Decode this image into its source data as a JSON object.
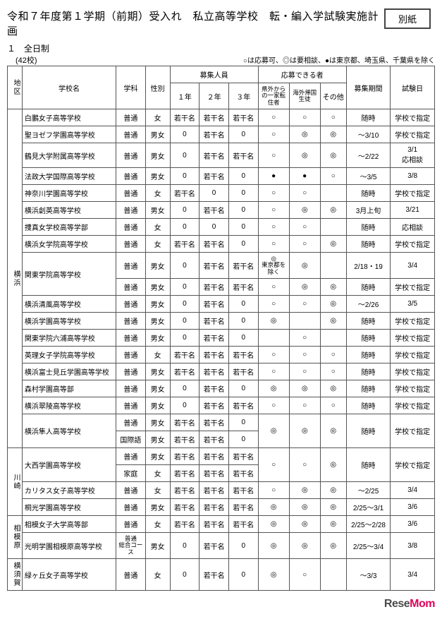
{
  "header": {
    "title": "令和７年度第１学期（前期）受入れ　私立高等学校　転・編入学試験実施計画",
    "attachment": "別紙",
    "sub1": "１　全日制",
    "sub2_left": "(42校)",
    "sub2_right": "○は応募可、◎は要相談、●は東京都、埼玉県、千葉県を除く"
  },
  "th": {
    "region": "地区",
    "school": "学校名",
    "dept": "学科",
    "sex": "性別",
    "recruit": "募集人員",
    "apply": "応募できる者",
    "y1": "１年",
    "y2": "２年",
    "y3": "３年",
    "a1": "県外からの一家転住者",
    "a2": "海外帰国生徒",
    "a3": "その他",
    "period": "募集期間",
    "exam": "試験日"
  },
  "regions": [
    {
      "name": "横浜",
      "rows": 19
    },
    {
      "name": "川崎",
      "rows": 4
    },
    {
      "name": "相模原",
      "rows": 2
    },
    {
      "name": "横須賀",
      "rows": 1
    }
  ],
  "rows": [
    {
      "school": "白鵬女子高等学校",
      "dept": "普通",
      "sex": "女",
      "y1": "若干名",
      "y2": "若干名",
      "y3": "若干名",
      "a1": "○",
      "a2": "○",
      "a3": "○",
      "period": "随時",
      "exam": "学校で指定"
    },
    {
      "school": "聖ヨゼフ学園高等学校",
      "dept": "普通",
      "sex": "男女",
      "y1": "0",
      "y2": "若干名",
      "y3": "0",
      "a1": "○",
      "a2": "◎",
      "a3": "◎",
      "period": "～3/10",
      "exam": "学校で指定"
    },
    {
      "school": "鶴見大学附属高等学校",
      "dept": "普通",
      "sex": "男女",
      "y1": "0",
      "y2": "若干名",
      "y3": "若干名",
      "a1": "○",
      "a2": "◎",
      "a3": "◎",
      "period": "～2/22",
      "exam": "3/1\n応相談"
    },
    {
      "school": "法政大学国際高等学校",
      "dept": "普通",
      "sex": "男女",
      "y1": "0",
      "y2": "若干名",
      "y3": "0",
      "a1": "●",
      "a2": "●",
      "a3": "○",
      "period": "～3/5",
      "exam": "3/8"
    },
    {
      "school": "神奈川学園高等学校",
      "dept": "普通",
      "sex": "女",
      "y1": "若干名",
      "y2": "0",
      "y3": "0",
      "a1": "○",
      "a2": "○",
      "a3": "",
      "period": "随時",
      "exam": "学校で指定"
    },
    {
      "school": "横浜創英高等学校",
      "dept": "普通",
      "sex": "男女",
      "y1": "0",
      "y2": "若干名",
      "y3": "0",
      "a1": "○",
      "a2": "◎",
      "a3": "◎",
      "period": "3月上旬",
      "exam": "3/21"
    },
    {
      "school": "捜真女学校高等学部",
      "dept": "普通",
      "sex": "女",
      "y1": "0",
      "y2": "0",
      "y3": "0",
      "a1": "○",
      "a2": "○",
      "a3": "",
      "period": "随時",
      "exam": "応相談"
    },
    {
      "school": "横浜女学院高等学校",
      "dept": "普通",
      "sex": "女",
      "y1": "若干名",
      "y2": "若干名",
      "y3": "0",
      "a1": "○",
      "a2": "○",
      "a3": "◎",
      "period": "随時",
      "exam": "学校で指定"
    },
    {
      "school": "関東学院高等学校",
      "school_rowspan": 2,
      "dept": "普通",
      "sex": "男女",
      "y1": "0",
      "y2": "若干名",
      "y3": "若干名",
      "a1": "◎\n東京都を除く",
      "a1_tiny": true,
      "a2": "◎",
      "a3": "",
      "period": "2/18・19",
      "exam": "3/4"
    },
    {
      "dept": "普通",
      "sex": "男女",
      "y1": "0",
      "y2": "若干名",
      "y3": "若干名",
      "a1": "○",
      "a2": "◎",
      "a3": "◎",
      "period": "随時",
      "exam": "学校で指定"
    },
    {
      "school": "横浜清風高等学校",
      "dept": "普通",
      "sex": "男女",
      "y1": "0",
      "y2": "若干名",
      "y3": "0",
      "a1": "○",
      "a2": "○",
      "a3": "◎",
      "period": "～2/26",
      "exam": "3/5"
    },
    {
      "school": "横浜学園高等学校",
      "dept": "普通",
      "sex": "男女",
      "y1": "0",
      "y2": "若干名",
      "y3": "0",
      "a1": "◎",
      "a2": "",
      "a3": "◎",
      "period": "随時",
      "exam": "学校で指定"
    },
    {
      "school": "関東学院六浦高等学校",
      "dept": "普通",
      "sex": "男女",
      "y1": "0",
      "y2": "若干名",
      "y3": "0",
      "a1": "",
      "a2": "○",
      "a3": "",
      "period": "随時",
      "exam": "学校で指定"
    },
    {
      "school": "英理女子学院高等学校",
      "dept": "普通",
      "sex": "女",
      "y1": "若干名",
      "y2": "若干名",
      "y3": "若干名",
      "a1": "○",
      "a2": "○",
      "a3": "○",
      "period": "随時",
      "exam": "学校で指定"
    },
    {
      "school": "横浜富士見丘学園高等学校",
      "dept": "普通",
      "sex": "男女",
      "y1": "若干名",
      "y2": "若干名",
      "y3": "若干名",
      "a1": "○",
      "a2": "○",
      "a3": "○",
      "period": "随時",
      "exam": "学校で指定"
    },
    {
      "school": "森村学園高等部",
      "dept": "普通",
      "sex": "男女",
      "y1": "0",
      "y2": "若干名",
      "y3": "0",
      "a1": "◎",
      "a2": "◎",
      "a3": "◎",
      "period": "随時",
      "exam": "学校で指定"
    },
    {
      "school": "横浜翠陵高等学校",
      "dept": "普通",
      "sex": "男女",
      "y1": "0",
      "y2": "若干名",
      "y3": "若干名",
      "a1": "○",
      "a2": "○",
      "a3": "○",
      "period": "随時",
      "exam": "学校で指定"
    },
    {
      "school": "横浜隼人高等学校",
      "school_rowspan": 2,
      "dept": "普通",
      "sex": "男女",
      "y1": "若干名",
      "y2": "若干名",
      "y3": "0",
      "a1": "◎",
      "a1_rowspan": 2,
      "a2": "◎",
      "a2_rowspan": 2,
      "a3": "◎",
      "a3_rowspan": 2,
      "period": "随時",
      "period_rowspan": 2,
      "exam": "学校で指定",
      "exam_rowspan": 2
    },
    {
      "dept": "国際語",
      "sex": "男女",
      "y1": "若干名",
      "y2": "若干名",
      "y3": "0"
    },
    {
      "school": "大西学園高等学校",
      "school_rowspan": 2,
      "dept": "普通",
      "sex": "男女",
      "y1": "若干名",
      "y2": "若干名",
      "y3": "若干名",
      "a1": "○",
      "a1_rowspan": 2,
      "a2": "○",
      "a2_rowspan": 2,
      "a3": "◎",
      "a3_rowspan": 2,
      "period": "随時",
      "period_rowspan": 2,
      "exam": "学校で指定",
      "exam_rowspan": 2
    },
    {
      "dept": "家庭",
      "sex": "女",
      "y1": "若干名",
      "y2": "若干名",
      "y3": "若干名"
    },
    {
      "school": "カリタス女子高等学校",
      "dept": "普通",
      "sex": "女",
      "y1": "若干名",
      "y2": "若干名",
      "y3": "若干名",
      "a1": "○",
      "a2": "◎",
      "a3": "◎",
      "period": "～2/25",
      "exam": "3/4"
    },
    {
      "school": "桐光学園高等学校",
      "dept": "普通",
      "sex": "男女",
      "y1": "若干名",
      "y2": "若干名",
      "y3": "若干名",
      "a1": "◎",
      "a2": "◎",
      "a3": "◎",
      "period": "2/25～3/1",
      "exam": "3/6"
    },
    {
      "school": "相模女子大学高等部",
      "dept": "普通",
      "sex": "女",
      "y1": "若干名",
      "y2": "若干名",
      "y3": "若干名",
      "a1": "◎",
      "a2": "◎",
      "a3": "◎",
      "period": "2/25～2/28",
      "exam": "3/6"
    },
    {
      "school": "光明学園相模原高等学校",
      "dept": "普通\n総合コース",
      "dept_tiny": true,
      "sex": "男女",
      "y1": "0",
      "y2": "若干名",
      "y3": "0",
      "a1": "◎",
      "a2": "◎",
      "a3": "◎",
      "period": "2/25～3/4",
      "exam": "3/8"
    },
    {
      "school": "緑ヶ丘女子高等学校",
      "dept": "普通",
      "sex": "女",
      "y1": "0",
      "y2": "若干名",
      "y3": "0",
      "a1": "◎",
      "a2": "○",
      "a3": "",
      "period": "～3/3",
      "exam": "3/4"
    }
  ],
  "footer": {
    "re": "Rese",
    "mom": "Mom"
  }
}
